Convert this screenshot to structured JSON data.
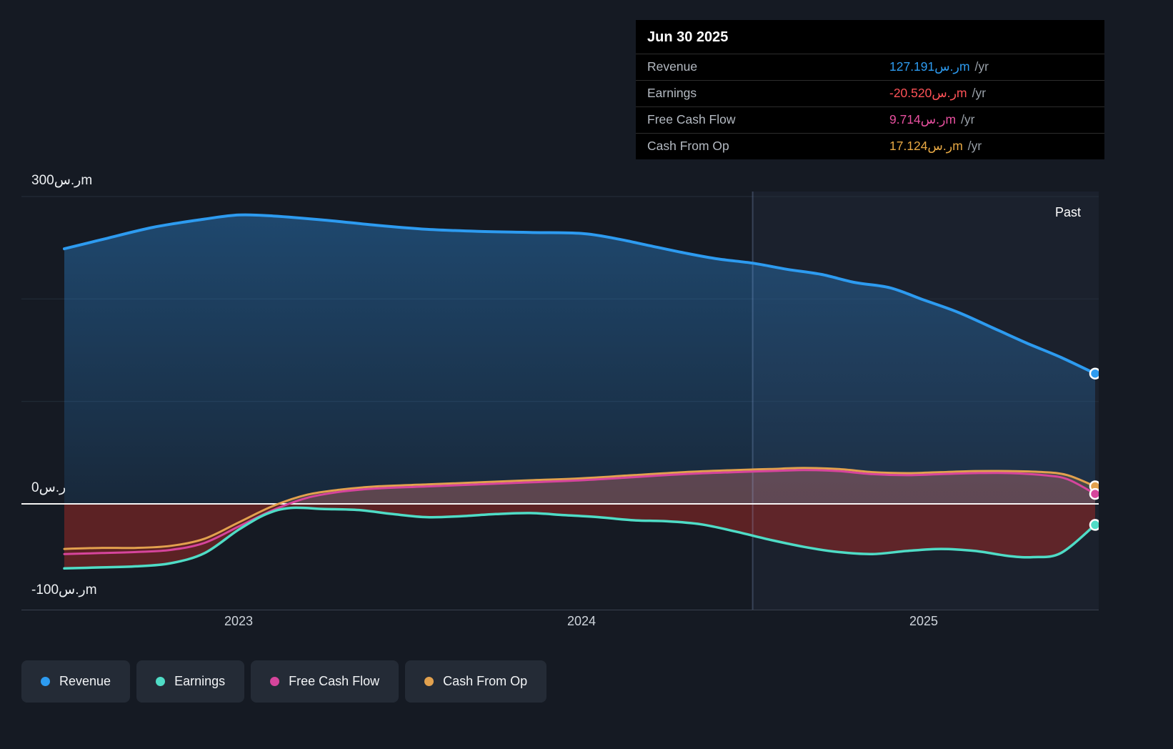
{
  "tooltip": {
    "date": "Jun 30 2025",
    "rows": [
      {
        "label": "Revenue",
        "value": "127.191ر.سm",
        "unit": "/yr",
        "color": "#2d9bf0"
      },
      {
        "label": "Earnings",
        "value": "-20.520ر.سm",
        "unit": "/yr",
        "color": "#ff5257"
      },
      {
        "label": "Free Cash Flow",
        "value": "9.714ر.سm",
        "unit": "/yr",
        "color": "#e8509f"
      },
      {
        "label": "Cash From Op",
        "value": "17.124ر.سm",
        "unit": "/yr",
        "color": "#e8a944"
      }
    ]
  },
  "axis": {
    "y_labels": [
      {
        "text": "300ر.سm"
      },
      {
        "text": "0ر.س"
      },
      {
        "text": "-100ر.سm"
      }
    ],
    "x_ticks": [
      "2023",
      "2024",
      "2025"
    ]
  },
  "annotations": {
    "past": "Past"
  },
  "legend": [
    {
      "label": "Revenue",
      "color": "#2d9bf0"
    },
    {
      "label": "Earnings",
      "color": "#4fdcc6"
    },
    {
      "label": "Free Cash Flow",
      "color": "#d6459c"
    },
    {
      "label": "Cash From Op",
      "color": "#e2a14e"
    }
  ],
  "chart_data": {
    "type": "line",
    "title": "Earnings and Revenue History",
    "x_axis": {
      "unit": "year",
      "min": 2022.49,
      "max": 2025.5,
      "ticks": [
        2023,
        2024,
        2025
      ]
    },
    "y_axis": {
      "unit": "ر.سm",
      "min": -100,
      "max": 300,
      "gridlines": [
        300,
        200,
        100,
        0
      ]
    },
    "divider_x": 2024.5,
    "legend_position": "bottom-left",
    "series": [
      {
        "name": "Revenue",
        "color": "#2d9bf0",
        "line_width": 4,
        "fill": "blue-gradient",
        "points": [
          [
            2022.49,
            249
          ],
          [
            2022.6,
            258
          ],
          [
            2022.75,
            270
          ],
          [
            2022.9,
            278
          ],
          [
            2023.0,
            282
          ],
          [
            2023.1,
            281
          ],
          [
            2023.25,
            277
          ],
          [
            2023.4,
            272
          ],
          [
            2023.55,
            268
          ],
          [
            2023.7,
            266
          ],
          [
            2023.85,
            265
          ],
          [
            2024.0,
            264
          ],
          [
            2024.1,
            259
          ],
          [
            2024.2,
            252
          ],
          [
            2024.3,
            245
          ],
          [
            2024.4,
            239
          ],
          [
            2024.5,
            235
          ],
          [
            2024.6,
            229
          ],
          [
            2024.7,
            224
          ],
          [
            2024.8,
            216
          ],
          [
            2024.9,
            211
          ],
          [
            2025.0,
            199
          ],
          [
            2025.1,
            187
          ],
          [
            2025.2,
            172
          ],
          [
            2025.3,
            157
          ],
          [
            2025.4,
            143
          ],
          [
            2025.5,
            127.191
          ]
        ]
      },
      {
        "name": "Cash From Op",
        "color": "#e2a14e",
        "line_width": 3,
        "fill": "rgba(228,166,80,0.22)",
        "fill_clip": "above-zero",
        "points": [
          [
            2022.49,
            -44
          ],
          [
            2022.6,
            -43
          ],
          [
            2022.7,
            -43
          ],
          [
            2022.8,
            -41
          ],
          [
            2022.9,
            -34
          ],
          [
            2023.0,
            -18
          ],
          [
            2023.1,
            -2
          ],
          [
            2023.2,
            9
          ],
          [
            2023.3,
            14
          ],
          [
            2023.4,
            17
          ],
          [
            2023.55,
            19
          ],
          [
            2023.7,
            21
          ],
          [
            2023.85,
            23
          ],
          [
            2024.0,
            25
          ],
          [
            2024.15,
            28
          ],
          [
            2024.3,
            31
          ],
          [
            2024.45,
            33
          ],
          [
            2024.55,
            34
          ],
          [
            2024.65,
            35
          ],
          [
            2024.75,
            34
          ],
          [
            2024.85,
            31
          ],
          [
            2024.95,
            30
          ],
          [
            2025.05,
            31
          ],
          [
            2025.15,
            32
          ],
          [
            2025.25,
            32
          ],
          [
            2025.35,
            31
          ],
          [
            2025.42,
            28
          ],
          [
            2025.5,
            17.124
          ]
        ]
      },
      {
        "name": "Free Cash Flow",
        "color": "#d6459c",
        "line_width": 3,
        "fill": "rgba(216,74,156,0.16)",
        "fill_clip": "above-zero",
        "points": [
          [
            2022.49,
            -49
          ],
          [
            2022.6,
            -48
          ],
          [
            2022.7,
            -47
          ],
          [
            2022.8,
            -45
          ],
          [
            2022.9,
            -38
          ],
          [
            2023.0,
            -22
          ],
          [
            2023.1,
            -6
          ],
          [
            2023.2,
            6
          ],
          [
            2023.3,
            12
          ],
          [
            2023.4,
            15
          ],
          [
            2023.55,
            17
          ],
          [
            2023.7,
            19
          ],
          [
            2023.85,
            21
          ],
          [
            2024.0,
            23
          ],
          [
            2024.15,
            26
          ],
          [
            2024.3,
            29
          ],
          [
            2024.45,
            31
          ],
          [
            2024.55,
            32
          ],
          [
            2024.65,
            33
          ],
          [
            2024.75,
            32
          ],
          [
            2024.85,
            29
          ],
          [
            2024.95,
            28
          ],
          [
            2025.05,
            29
          ],
          [
            2025.15,
            30
          ],
          [
            2025.25,
            30
          ],
          [
            2025.35,
            28
          ],
          [
            2025.42,
            24
          ],
          [
            2025.5,
            9.714
          ]
        ]
      },
      {
        "name": "Earnings",
        "color": "#4fdcc6",
        "line_width": 3.5,
        "fill": "rgba(164,42,38,0.5)",
        "fill_clip": "below-zero",
        "points": [
          [
            2022.49,
            -63
          ],
          [
            2022.6,
            -62
          ],
          [
            2022.7,
            -61
          ],
          [
            2022.8,
            -58
          ],
          [
            2022.9,
            -48
          ],
          [
            2023.0,
            -25
          ],
          [
            2023.08,
            -10
          ],
          [
            2023.15,
            -4
          ],
          [
            2023.25,
            -5
          ],
          [
            2023.35,
            -6
          ],
          [
            2023.45,
            -10
          ],
          [
            2023.55,
            -13
          ],
          [
            2023.65,
            -12
          ],
          [
            2023.75,
            -10
          ],
          [
            2023.85,
            -9
          ],
          [
            2023.95,
            -11
          ],
          [
            2024.05,
            -13
          ],
          [
            2024.15,
            -16
          ],
          [
            2024.25,
            -17
          ],
          [
            2024.35,
            -20
          ],
          [
            2024.45,
            -27
          ],
          [
            2024.55,
            -35
          ],
          [
            2024.65,
            -42
          ],
          [
            2024.75,
            -47
          ],
          [
            2024.85,
            -49
          ],
          [
            2024.95,
            -46
          ],
          [
            2025.05,
            -44
          ],
          [
            2025.15,
            -46
          ],
          [
            2025.25,
            -51
          ],
          [
            2025.32,
            -52
          ],
          [
            2025.4,
            -48
          ],
          [
            2025.5,
            -20.52
          ]
        ]
      }
    ]
  }
}
